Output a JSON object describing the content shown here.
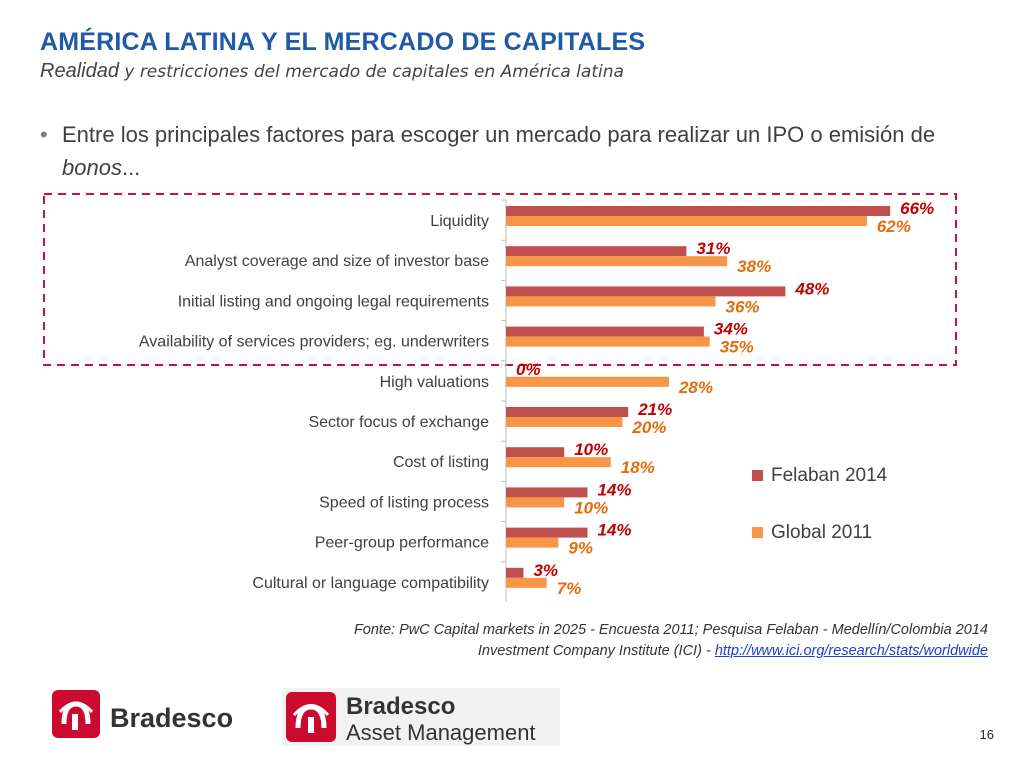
{
  "slide": {
    "title": "AMÉRICA LATINA Y EL MERCADO DE CAPITALES",
    "subtitle_a": "Realidad",
    "subtitle_b": " y restricciones del mercado de capitales en América latina",
    "bullet_a": "Entre los principales factores para escoger un mercado para realizar un IPO o emisión de ",
    "bullet_b": "bonos",
    "bullet_c": "...",
    "source_line1": "Fonte: PwC Capital markets in 2025 - Encuesta 2011; Pesquisa Felaban - Medellín/Colombia 2014",
    "source_line2_text": "Investment Company Institute (ICI) - ",
    "source_line2_link": "http://www.ici.org/research/stats/worldwide",
    "page_number": "16",
    "logo1_text": "Bradesco",
    "logo2_line1": "Bradesco",
    "logo2_line2": "Asset Management"
  },
  "colors": {
    "title": "#1f5aa8",
    "felaban": "#c0504d",
    "global": "#f79646",
    "felaban_label": "#c00000",
    "global_label": "#e46c0a",
    "highlight_box": "#c0143c",
    "brand_red": "#cc092f"
  },
  "chart_data": {
    "type": "bar",
    "orientation": "horizontal",
    "categories": [
      "Liquidity",
      "Analyst coverage and size of investor base",
      "Initial listing and ongoing legal requirements",
      "Availability of services providers; eg. underwriters",
      "High valuations",
      "Sector focus of exchange",
      "Cost of listing",
      "Speed of listing process",
      "Peer-group performance",
      "Cultural or language compatibility"
    ],
    "series": [
      {
        "name": "Felaban 2014",
        "values": [
          66,
          31,
          48,
          34,
          0,
          21,
          10,
          14,
          14,
          3
        ],
        "labels": [
          "66%",
          "31%",
          "48%",
          "34%",
          "0%",
          "21%",
          "10%",
          "14%",
          "14%",
          "3%"
        ]
      },
      {
        "name": "Global 2011",
        "values": [
          62,
          38,
          36,
          35,
          28,
          20,
          18,
          10,
          9,
          7
        ],
        "labels": [
          "62%",
          "38%",
          "36%",
          "35%",
          "28%",
          "20%",
          "18%",
          "10%",
          "9%",
          "7%"
        ]
      }
    ],
    "unit": "%",
    "xlim": [
      0,
      70
    ],
    "legend_position": "right",
    "highlighted_categories": [
      "Liquidity",
      "Analyst coverage and size of investor base",
      "Initial listing and ongoing legal requirements",
      "Availability of services providers; eg. underwriters"
    ]
  }
}
